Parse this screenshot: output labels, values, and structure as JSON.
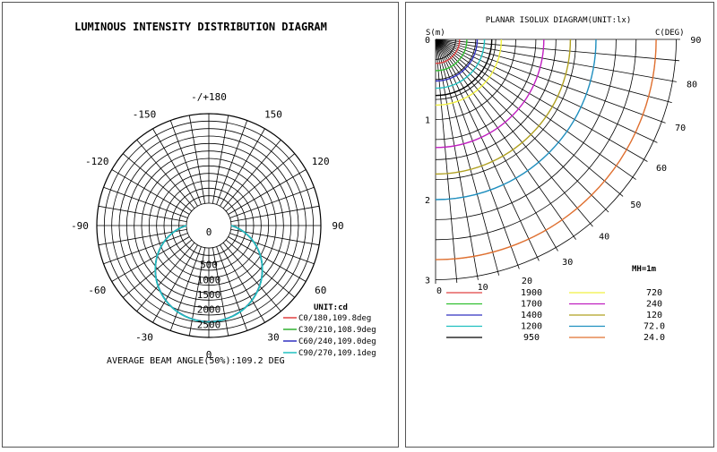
{
  "chart_data": [
    {
      "type": "polar",
      "title": "LUMINOUS INTENSITY DISTRIBUTION DIAGRAM",
      "angle_labels": [
        "-/+180",
        "150",
        "120",
        "90",
        "60",
        "30",
        "0",
        "-30",
        "-60",
        "-90",
        "-120",
        "-150"
      ],
      "angle_values": [
        180,
        150,
        120,
        90,
        60,
        30,
        0,
        -30,
        -60,
        -90,
        -120,
        -150
      ],
      "radial_labels": [
        "0",
        "500",
        "1000",
        "1500",
        "2000",
        "2500"
      ],
      "radial_values": [
        0,
        500,
        1000,
        1500,
        2000,
        2500
      ],
      "r_max": 3000,
      "unit_label": "UNIT:cd",
      "footer": "AVERAGE BEAM ANGLE(50%):109.2 DEG",
      "series": [
        {
          "name": "C0/180,109.8deg",
          "color": "#e04040",
          "peak": 2470
        },
        {
          "name": "C30/210,108.9deg",
          "color": "#30b030",
          "peak": 2470
        },
        {
          "name": "C60/240,109.0deg",
          "color": "#3030c0",
          "peak": 2470
        },
        {
          "name": "C90/270,109.1deg",
          "color": "#20c0c0",
          "peak": 2475
        }
      ]
    },
    {
      "type": "isolux",
      "title": "PLANAR ISOLUX DIAGRAM(UNIT:lx)",
      "y_axis_label": "S(m)",
      "x_axis_label": "C(DEG)",
      "y_ticks": [
        "0",
        "1",
        "2",
        "3"
      ],
      "x_ticks": [
        "0",
        "10"
      ],
      "angle_labels": [
        "20",
        "30",
        "40",
        "50",
        "60",
        "70",
        "80",
        "90"
      ],
      "angle_values": [
        20,
        30,
        40,
        50,
        60,
        70,
        80,
        90
      ],
      "mh_label": "MH=1m",
      "levels": [
        {
          "value": "1900",
          "color": "#e04040",
          "radius": 0.3
        },
        {
          "value": "1700",
          "color": "#30c030",
          "radius": 0.39
        },
        {
          "value": "1400",
          "color": "#3030c0",
          "radius": 0.52
        },
        {
          "value": "1200",
          "color": "#20c0c0",
          "radius": 0.61
        },
        {
          "value": "950",
          "color": "#000000",
          "radius": 0.7
        },
        {
          "value": "720",
          "color": "#f0f040",
          "radius": 0.82
        },
        {
          "value": "240",
          "color": "#c020c0",
          "radius": 1.35
        },
        {
          "value": "120",
          "color": "#b0a020",
          "radius": 1.68
        },
        {
          "value": "72.0",
          "color": "#2090c0",
          "radius": 2.0
        },
        {
          "value": "24.0",
          "color": "#e07030",
          "radius": 2.75
        }
      ]
    }
  ]
}
